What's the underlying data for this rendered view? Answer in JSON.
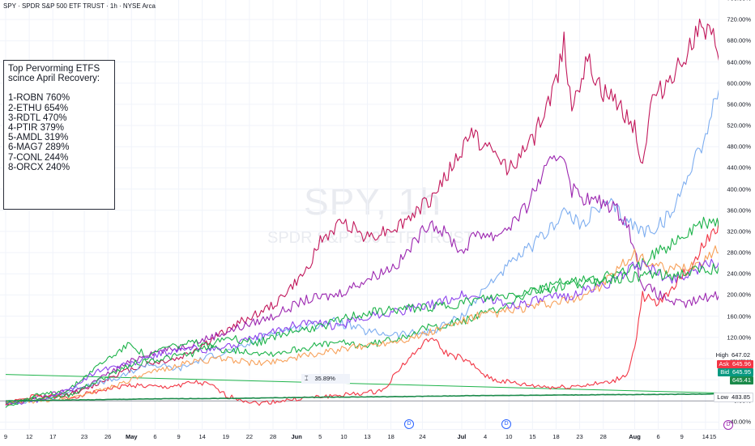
{
  "header": {
    "text": "SPY · SPDR S&P 500 ETF TRUST · 1h · NYSE Arca"
  },
  "watermark": {
    "symbol": "SPY, 1h",
    "name": "SPDR S&P 500 ETF TRUST"
  },
  "annotation": {
    "title_line1": "Top Pervorming ETFS",
    "title_line2": "scince April Recovery:",
    "items": [
      "1-ROBN 760%",
      "2-ETHU 654%",
      "3-RDTL 470%",
      "4-PTIR 379%",
      "5-AMDL 319%",
      "6-MAG7 289%",
      "7-CONL 244%",
      "8-ORCX 240%"
    ]
  },
  "measure_label": "35.89%",
  "price_labels": {
    "high": {
      "tag": "High",
      "value": "647.02"
    },
    "ask": {
      "tag": "Ask",
      "value": "645.96"
    },
    "bid": {
      "tag": "Bid",
      "value": "645.95"
    },
    "last": {
      "tag": "",
      "value": "645.41"
    },
    "low": {
      "tag": "Low",
      "value": "483.85"
    }
  },
  "colors": {
    "red": "#f23645",
    "crimson": "#c2185b",
    "purple": "#9c27b0",
    "lightblue": "#7eaef0",
    "green": "#1eb34b",
    "orange": "#f7a15a",
    "violet": "#8e44ec",
    "darkgreen": "#1b8a4a",
    "bid_green": "#089981",
    "ask_red": "#f23645"
  },
  "chart_data": {
    "type": "line",
    "x_domain_label": "Apr 9 – Aug 15 (hourly)",
    "ylim": [
      -50,
      760
    ],
    "yticks": [
      "760.00%",
      "720.00%",
      "680.00%",
      "640.00%",
      "600.00%",
      "560.00%",
      "520.00%",
      "480.00%",
      "440.00%",
      "400.00%",
      "360.00%",
      "320.00%",
      "280.00%",
      "240.00%",
      "200.00%",
      "160.00%",
      "120.00%",
      "80.00%",
      "40.00%",
      "0.00%",
      "-40.00%"
    ],
    "ytick_values": [
      760,
      720,
      680,
      640,
      600,
      560,
      520,
      480,
      440,
      400,
      360,
      320,
      280,
      240,
      200,
      160,
      120,
      80,
      40,
      0,
      -40
    ],
    "xticks": [
      {
        "label": "9",
        "t": 0
      },
      {
        "label": "12",
        "t": 3
      },
      {
        "label": "17",
        "t": 6
      },
      {
        "label": "23",
        "t": 10
      },
      {
        "label": "26",
        "t": 13
      },
      {
        "label": "May",
        "t": 16,
        "bold": true
      },
      {
        "label": "6",
        "t": 19
      },
      {
        "label": "9",
        "t": 22
      },
      {
        "label": "14",
        "t": 25
      },
      {
        "label": "19",
        "t": 28
      },
      {
        "label": "22",
        "t": 31
      },
      {
        "label": "28",
        "t": 34
      },
      {
        "label": "Jun",
        "t": 37,
        "bold": true
      },
      {
        "label": "5",
        "t": 40
      },
      {
        "label": "10",
        "t": 43
      },
      {
        "label": "13",
        "t": 46
      },
      {
        "label": "18",
        "t": 49
      },
      {
        "label": "24",
        "t": 53
      },
      {
        "label": "Jul",
        "t": 58,
        "bold": true
      },
      {
        "label": "4",
        "t": 61
      },
      {
        "label": "10",
        "t": 64
      },
      {
        "label": "15",
        "t": 67
      },
      {
        "label": "18",
        "t": 70
      },
      {
        "label": "23",
        "t": 73
      },
      {
        "label": "28",
        "t": 76
      },
      {
        "label": "Aug",
        "t": 80,
        "bold": true
      },
      {
        "label": "6",
        "t": 83
      },
      {
        "label": "9",
        "t": 86
      },
      {
        "label": "14",
        "t": 89
      },
      {
        "label": "15",
        "t": 92
      }
    ],
    "t_range": [
      0,
      92
    ],
    "series": [
      {
        "name": "ROBN",
        "color": "#c2185b",
        "seed": 11,
        "points": [
          [
            0,
            -5
          ],
          [
            5,
            5
          ],
          [
            10,
            20
          ],
          [
            14,
            50
          ],
          [
            18,
            70
          ],
          [
            22,
            80
          ],
          [
            25,
            105
          ],
          [
            30,
            150
          ],
          [
            34,
            180
          ],
          [
            38,
            240
          ],
          [
            40,
            300
          ],
          [
            43,
            340
          ],
          [
            46,
            310
          ],
          [
            50,
            330
          ],
          [
            54,
            380
          ],
          [
            58,
            470
          ],
          [
            59,
            510
          ],
          [
            61,
            480
          ],
          [
            64,
            440
          ],
          [
            67,
            490
          ],
          [
            70,
            600
          ],
          [
            71,
            680
          ],
          [
            72,
            560
          ],
          [
            74,
            640
          ],
          [
            76,
            580
          ],
          [
            78,
            560
          ],
          [
            80,
            520
          ],
          [
            81,
            440
          ],
          [
            82,
            560
          ],
          [
            84,
            600
          ],
          [
            86,
            640
          ],
          [
            88,
            700
          ],
          [
            90,
            680
          ],
          [
            92,
            620
          ],
          [
            93,
            630
          ]
        ]
      },
      {
        "name": "ETHU",
        "color": "#7eaef0",
        "seed": 23,
        "points": [
          [
            0,
            -5
          ],
          [
            6,
            5
          ],
          [
            10,
            30
          ],
          [
            14,
            40
          ],
          [
            18,
            70
          ],
          [
            22,
            60
          ],
          [
            26,
            85
          ],
          [
            30,
            100
          ],
          [
            34,
            130
          ],
          [
            38,
            140
          ],
          [
            42,
            150
          ],
          [
            46,
            130
          ],
          [
            50,
            125
          ],
          [
            54,
            130
          ],
          [
            58,
            160
          ],
          [
            62,
            230
          ],
          [
            66,
            280
          ],
          [
            69,
            320
          ],
          [
            71,
            360
          ],
          [
            73,
            330
          ],
          [
            75,
            360
          ],
          [
            77,
            370
          ],
          [
            79,
            340
          ],
          [
            81,
            320
          ],
          [
            83,
            330
          ],
          [
            85,
            360
          ],
          [
            87,
            440
          ],
          [
            89,
            500
          ],
          [
            91,
            610
          ],
          [
            92,
            560
          ],
          [
            93,
            570
          ]
        ]
      },
      {
        "name": "RDTL",
        "color": "#9c27b0",
        "seed": 37,
        "points": [
          [
            0,
            -8
          ],
          [
            5,
            10
          ],
          [
            10,
            25
          ],
          [
            14,
            60
          ],
          [
            18,
            90
          ],
          [
            22,
            100
          ],
          [
            26,
            120
          ],
          [
            30,
            140
          ],
          [
            34,
            160
          ],
          [
            38,
            190
          ],
          [
            42,
            200
          ],
          [
            46,
            230
          ],
          [
            50,
            260
          ],
          [
            54,
            340
          ],
          [
            57,
            300
          ],
          [
            58,
            280
          ],
          [
            60,
            320
          ],
          [
            62,
            310
          ],
          [
            64,
            330
          ],
          [
            66,
            360
          ],
          [
            68,
            420
          ],
          [
            70,
            460
          ],
          [
            71,
            470
          ],
          [
            72,
            400
          ],
          [
            74,
            380
          ],
          [
            77,
            370
          ],
          [
            79,
            340
          ],
          [
            81,
            220
          ],
          [
            83,
            200
          ],
          [
            86,
            180
          ],
          [
            88,
            190
          ],
          [
            90,
            200
          ],
          [
            92,
            195
          ],
          [
            93,
            200
          ]
        ]
      },
      {
        "name": "PTIR",
        "color": "#f23645",
        "seed": 51,
        "points": [
          [
            0,
            -5
          ],
          [
            4,
            10
          ],
          [
            8,
            5
          ],
          [
            12,
            20
          ],
          [
            16,
            30
          ],
          [
            20,
            25
          ],
          [
            24,
            35
          ],
          [
            26,
            30
          ],
          [
            28,
            10
          ],
          [
            32,
            -5
          ],
          [
            35,
            0
          ],
          [
            38,
            5
          ],
          [
            42,
            10
          ],
          [
            46,
            15
          ],
          [
            48,
            20
          ],
          [
            50,
            60
          ],
          [
            54,
            120
          ],
          [
            56,
            90
          ],
          [
            58,
            80
          ],
          [
            60,
            60
          ],
          [
            62,
            40
          ],
          [
            66,
            30
          ],
          [
            70,
            25
          ],
          [
            74,
            30
          ],
          [
            77,
            35
          ],
          [
            79,
            50
          ],
          [
            80,
            100
          ],
          [
            81,
            200
          ],
          [
            83,
            180
          ],
          [
            85,
            220
          ],
          [
            87,
            250
          ],
          [
            89,
            300
          ],
          [
            91,
            340
          ],
          [
            92,
            370
          ],
          [
            93,
            380
          ]
        ]
      },
      {
        "name": "AMDL",
        "color": "#1eb34b",
        "seed": 63,
        "points": [
          [
            0,
            -10
          ],
          [
            4,
            10
          ],
          [
            8,
            20
          ],
          [
            12,
            70
          ],
          [
            16,
            110
          ],
          [
            18,
            80
          ],
          [
            20,
            100
          ],
          [
            24,
            110
          ],
          [
            26,
            100
          ],
          [
            30,
            95
          ],
          [
            34,
            90
          ],
          [
            38,
            100
          ],
          [
            42,
            110
          ],
          [
            46,
            105
          ],
          [
            50,
            120
          ],
          [
            54,
            140
          ],
          [
            58,
            150
          ],
          [
            62,
            170
          ],
          [
            66,
            200
          ],
          [
            70,
            220
          ],
          [
            74,
            230
          ],
          [
            78,
            240
          ],
          [
            80,
            250
          ],
          [
            82,
            270
          ],
          [
            84,
            290
          ],
          [
            86,
            310
          ],
          [
            88,
            330
          ],
          [
            90,
            340
          ],
          [
            92,
            320
          ],
          [
            93,
            310
          ]
        ]
      },
      {
        "name": "MAG7",
        "color": "#f7a15a",
        "seed": 71,
        "points": [
          [
            0,
            -5
          ],
          [
            4,
            0
          ],
          [
            8,
            5
          ],
          [
            12,
            20
          ],
          [
            16,
            40
          ],
          [
            20,
            60
          ],
          [
            24,
            75
          ],
          [
            28,
            80
          ],
          [
            32,
            70
          ],
          [
            36,
            80
          ],
          [
            40,
            90
          ],
          [
            44,
            100
          ],
          [
            48,
            110
          ],
          [
            52,
            120
          ],
          [
            56,
            140
          ],
          [
            60,
            160
          ],
          [
            64,
            170
          ],
          [
            68,
            180
          ],
          [
            72,
            190
          ],
          [
            76,
            220
          ],
          [
            78,
            250
          ],
          [
            80,
            275
          ],
          [
            82,
            260
          ],
          [
            84,
            245
          ],
          [
            86,
            250
          ],
          [
            88,
            260
          ],
          [
            90,
            280
          ],
          [
            92,
            290
          ],
          [
            93,
            285
          ]
        ]
      },
      {
        "name": "CONL",
        "color": "#8e44ec",
        "seed": 83,
        "points": [
          [
            0,
            -5
          ],
          [
            4,
            0
          ],
          [
            8,
            20
          ],
          [
            12,
            60
          ],
          [
            16,
            70
          ],
          [
            20,
            90
          ],
          [
            24,
            100
          ],
          [
            26,
            95
          ],
          [
            30,
            110
          ],
          [
            34,
            130
          ],
          [
            38,
            150
          ],
          [
            42,
            140
          ],
          [
            46,
            160
          ],
          [
            50,
            170
          ],
          [
            54,
            180
          ],
          [
            58,
            200
          ],
          [
            62,
            190
          ],
          [
            64,
            180
          ],
          [
            68,
            190
          ],
          [
            72,
            200
          ],
          [
            76,
            220
          ],
          [
            78,
            230
          ],
          [
            80,
            260
          ],
          [
            82,
            250
          ],
          [
            84,
            230
          ],
          [
            86,
            235
          ],
          [
            88,
            250
          ],
          [
            90,
            260
          ],
          [
            92,
            265
          ],
          [
            93,
            270
          ]
        ]
      },
      {
        "name": "ORCX",
        "color": "#1eb34b",
        "seed": 97,
        "points": [
          [
            0,
            -5
          ],
          [
            4,
            5
          ],
          [
            8,
            10
          ],
          [
            12,
            40
          ],
          [
            16,
            70
          ],
          [
            20,
            80
          ],
          [
            24,
            90
          ],
          [
            28,
            120
          ],
          [
            32,
            110
          ],
          [
            36,
            130
          ],
          [
            40,
            140
          ],
          [
            44,
            160
          ],
          [
            48,
            170
          ],
          [
            52,
            175
          ],
          [
            56,
            180
          ],
          [
            60,
            190
          ],
          [
            64,
            200
          ],
          [
            68,
            210
          ],
          [
            72,
            220
          ],
          [
            76,
            230
          ],
          [
            80,
            235
          ],
          [
            82,
            240
          ],
          [
            84,
            235
          ],
          [
            86,
            240
          ],
          [
            88,
            245
          ],
          [
            90,
            250
          ],
          [
            92,
            248
          ],
          [
            93,
            250
          ]
        ]
      },
      {
        "name": "SPY",
        "color": "#1b8a4a",
        "seed": 0,
        "points": [
          [
            0,
            0
          ],
          [
            10,
            2
          ],
          [
            20,
            4
          ],
          [
            30,
            5
          ],
          [
            40,
            7
          ],
          [
            50,
            8
          ],
          [
            60,
            10
          ],
          [
            70,
            11
          ],
          [
            80,
            12
          ],
          [
            90,
            13
          ],
          [
            93,
            14
          ]
        ]
      }
    ],
    "trend_line": {
      "color": "#1eb34b",
      "points": [
        [
          0,
          50
        ],
        [
          93,
          14
        ]
      ]
    },
    "baseline": 0
  }
}
